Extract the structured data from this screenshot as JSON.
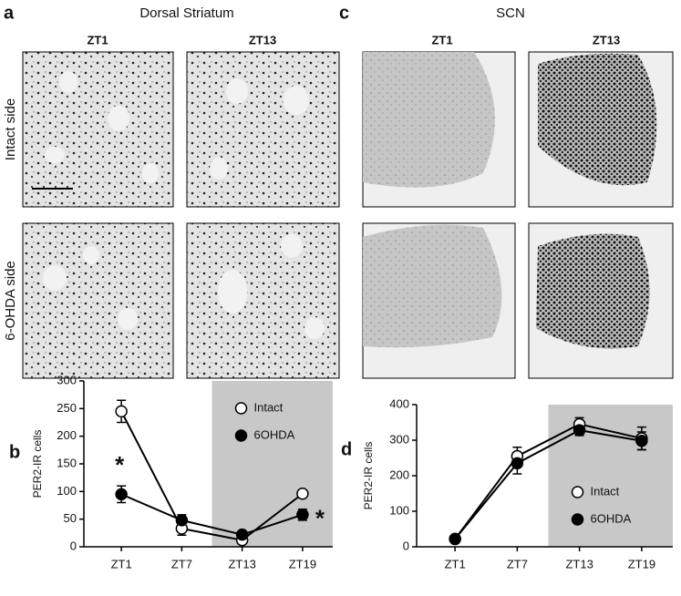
{
  "panels": {
    "a": {
      "letter": "a",
      "title": "Dorsal Striatum",
      "columns": [
        "ZT1",
        "ZT13"
      ],
      "rows": [
        "Intact side",
        "6-OHDA side"
      ]
    },
    "c": {
      "letter": "c",
      "title": "SCN",
      "columns": [
        "ZT1",
        "ZT13"
      ]
    }
  },
  "chart_data": [
    {
      "type": "line",
      "letter": "b",
      "y_label": "PER2-IR cells",
      "categories": [
        "ZT1",
        "ZT7",
        "ZT13",
        "ZT19"
      ],
      "ylim": [
        0,
        300
      ],
      "yticks": [
        0,
        50,
        100,
        150,
        200,
        250,
        300
      ],
      "legend": "top-right",
      "annotations": [
        "*",
        "*"
      ],
      "series": [
        {
          "name": "Intact",
          "color": "#ffffff",
          "values": [
            245,
            33,
            12,
            96
          ],
          "errors": [
            20,
            12,
            5,
            3
          ]
        },
        {
          "name": "6OHDA",
          "color": "#000000",
          "values": [
            95,
            48,
            22,
            58
          ],
          "errors": [
            15,
            10,
            5,
            10
          ]
        }
      ]
    },
    {
      "type": "line",
      "letter": "d",
      "y_label": "PER2-IR cells",
      "categories": [
        "ZT1",
        "ZT7",
        "ZT13",
        "ZT19"
      ],
      "ylim": [
        0,
        400
      ],
      "yticks": [
        0,
        100,
        200,
        300,
        400
      ],
      "legend": "bottom-right",
      "series": [
        {
          "name": "Intact",
          "color": "#ffffff",
          "values": [
            22,
            255,
            345,
            305
          ],
          "errors": [
            5,
            25,
            18,
            32
          ]
        },
        {
          "name": "6OHDA",
          "color": "#000000",
          "values": [
            22,
            235,
            328,
            298
          ],
          "errors": [
            5,
            30,
            15,
            25
          ]
        }
      ]
    }
  ]
}
